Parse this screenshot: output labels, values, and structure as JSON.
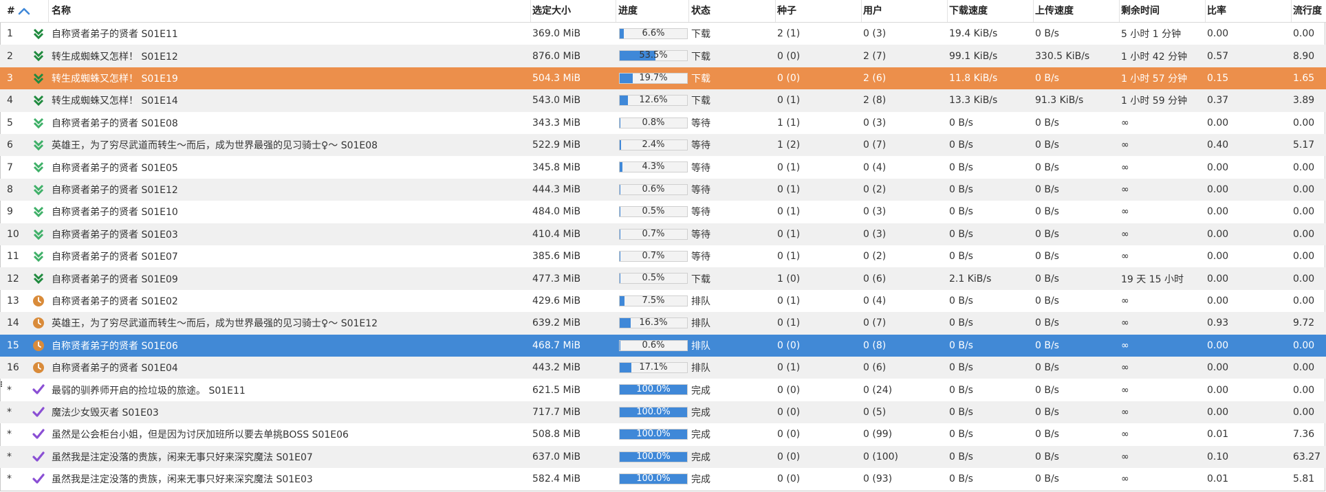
{
  "columns": {
    "num": "#",
    "name": "名称",
    "size": "选定大小",
    "progress": "进度",
    "status": "状态",
    "seeds": "种子",
    "peers": "用户",
    "down": "下载速度",
    "up": "上传速度",
    "eta": "剩余时间",
    "ratio": "比率",
    "pop": "流行度"
  },
  "colors": {
    "accent": "#4189d6",
    "orange_selection": "#ec8f4b",
    "green_download": "#2e9a4f",
    "queued_orange": "#d98b3a",
    "complete_purple": "#8a4fd4"
  },
  "rows": [
    {
      "num": "1",
      "icon": "download-double-chevron-icon",
      "name": "自称贤者弟子的贤者 S01E11",
      "size": "369.0 MiB",
      "pct": 6.6,
      "pct_text": "6.6%",
      "status": "下载",
      "seeds": "2 (1)",
      "peers": "0 (3)",
      "down": "19.4 KiB/s",
      "up": "0 B/s",
      "eta": "5 小时 1 分钟",
      "ratio": "0.00",
      "pop": "0.00"
    },
    {
      "num": "2",
      "icon": "download-double-chevron-icon",
      "name": "转生成蜘蛛又怎样！ S01E12",
      "size": "876.0 MiB",
      "pct": 53.5,
      "pct_text": "53.5%",
      "status": "下载",
      "seeds": "0 (0)",
      "peers": "2 (7)",
      "down": "99.1 KiB/s",
      "up": "330.5 KiB/s",
      "eta": "1 小时 42 分钟",
      "ratio": "0.57",
      "pop": "8.90"
    },
    {
      "num": "3",
      "icon": "download-double-chevron-icon",
      "name": "转生成蜘蛛又怎样！ S01E19",
      "size": "504.3 MiB",
      "pct": 19.7,
      "pct_text": "19.7%",
      "status": "下载",
      "seeds": "0 (0)",
      "peers": "2 (6)",
      "down": "11.8 KiB/s",
      "up": "0 B/s",
      "eta": "1 小时 57 分钟",
      "ratio": "0.15",
      "pop": "1.65",
      "selected": "orange"
    },
    {
      "num": "4",
      "icon": "download-double-chevron-icon",
      "name": "转生成蜘蛛又怎样！ S01E14",
      "size": "543.0 MiB",
      "pct": 12.6,
      "pct_text": "12.6%",
      "status": "下载",
      "seeds": "0 (1)",
      "peers": "2 (8)",
      "down": "13.3 KiB/s",
      "up": "91.3 KiB/s",
      "eta": "1 小时 59 分钟",
      "ratio": "0.37",
      "pop": "3.89"
    },
    {
      "num": "5",
      "icon": "waiting-double-chevron-icon",
      "name": "自称贤者弟子的贤者 S01E08",
      "size": "343.3 MiB",
      "pct": 0.8,
      "pct_text": "0.8%",
      "status": "等待",
      "seeds": "1 (1)",
      "peers": "0 (3)",
      "down": "0 B/s",
      "up": "0 B/s",
      "eta": "∞",
      "ratio": "0.00",
      "pop": "0.00"
    },
    {
      "num": "6",
      "icon": "waiting-double-chevron-icon",
      "name": "英雄王，为了穷尽武道而转生～而后，成为世界最强的见习骑士♀～ S01E08",
      "size": "522.9 MiB",
      "pct": 2.4,
      "pct_text": "2.4%",
      "status": "等待",
      "seeds": "1 (2)",
      "peers": "0 (7)",
      "down": "0 B/s",
      "up": "0 B/s",
      "eta": "∞",
      "ratio": "0.40",
      "pop": "5.17"
    },
    {
      "num": "7",
      "icon": "waiting-double-chevron-icon",
      "name": "自称贤者弟子的贤者 S01E05",
      "size": "345.8 MiB",
      "pct": 4.3,
      "pct_text": "4.3%",
      "status": "等待",
      "seeds": "0 (1)",
      "peers": "0 (4)",
      "down": "0 B/s",
      "up": "0 B/s",
      "eta": "∞",
      "ratio": "0.00",
      "pop": "0.00"
    },
    {
      "num": "8",
      "icon": "waiting-double-chevron-icon",
      "name": "自称贤者弟子的贤者 S01E12",
      "size": "444.3 MiB",
      "pct": 0.6,
      "pct_text": "0.6%",
      "status": "等待",
      "seeds": "0 (1)",
      "peers": "0 (2)",
      "down": "0 B/s",
      "up": "0 B/s",
      "eta": "∞",
      "ratio": "0.00",
      "pop": "0.00"
    },
    {
      "num": "9",
      "icon": "waiting-double-chevron-icon",
      "name": "自称贤者弟子的贤者 S01E10",
      "size": "484.0 MiB",
      "pct": 0.5,
      "pct_text": "0.5%",
      "status": "等待",
      "seeds": "0 (1)",
      "peers": "0 (3)",
      "down": "0 B/s",
      "up": "0 B/s",
      "eta": "∞",
      "ratio": "0.00",
      "pop": "0.00"
    },
    {
      "num": "10",
      "icon": "waiting-double-chevron-icon",
      "name": "自称贤者弟子的贤者 S01E03",
      "size": "410.4 MiB",
      "pct": 0.7,
      "pct_text": "0.7%",
      "status": "等待",
      "seeds": "0 (1)",
      "peers": "0 (3)",
      "down": "0 B/s",
      "up": "0 B/s",
      "eta": "∞",
      "ratio": "0.00",
      "pop": "0.00"
    },
    {
      "num": "11",
      "icon": "waiting-double-chevron-icon",
      "name": "自称贤者弟子的贤者 S01E07",
      "size": "385.6 MiB",
      "pct": 0.7,
      "pct_text": "0.7%",
      "status": "等待",
      "seeds": "0 (1)",
      "peers": "0 (2)",
      "down": "0 B/s",
      "up": "0 B/s",
      "eta": "∞",
      "ratio": "0.00",
      "pop": "0.00"
    },
    {
      "num": "12",
      "icon": "download-double-chevron-icon",
      "name": "自称贤者弟子的贤者 S01E09",
      "size": "477.3 MiB",
      "pct": 0.5,
      "pct_text": "0.5%",
      "status": "下载",
      "seeds": "1 (0)",
      "peers": "0 (6)",
      "down": "2.1 KiB/s",
      "up": "0 B/s",
      "eta": "19 天 15 小时",
      "ratio": "0.00",
      "pop": "0.00"
    },
    {
      "num": "13",
      "icon": "queued-clock-icon",
      "name": "自称贤者弟子的贤者 S01E02",
      "size": "429.6 MiB",
      "pct": 7.5,
      "pct_text": "7.5%",
      "status": "排队",
      "seeds": "0 (1)",
      "peers": "0 (4)",
      "down": "0 B/s",
      "up": "0 B/s",
      "eta": "∞",
      "ratio": "0.00",
      "pop": "0.00"
    },
    {
      "num": "14",
      "icon": "queued-clock-icon",
      "name": "英雄王，为了穷尽武道而转生～而后，成为世界最强的见习骑士♀～ S01E12",
      "size": "639.2 MiB",
      "pct": 16.3,
      "pct_text": "16.3%",
      "status": "排队",
      "seeds": "0 (1)",
      "peers": "0 (7)",
      "down": "0 B/s",
      "up": "0 B/s",
      "eta": "∞",
      "ratio": "0.93",
      "pop": "9.72"
    },
    {
      "num": "15",
      "icon": "queued-clock-icon",
      "name": "自称贤者弟子的贤者 S01E06",
      "size": "468.7 MiB",
      "pct": 0.6,
      "pct_text": "0.6%",
      "status": "排队",
      "seeds": "0 (0)",
      "peers": "0 (8)",
      "down": "0 B/s",
      "up": "0 B/s",
      "eta": "∞",
      "ratio": "0.00",
      "pop": "0.00",
      "selected": "blue"
    },
    {
      "num": "16",
      "icon": "queued-clock-icon",
      "name": "自称贤者弟子的贤者 S01E04",
      "size": "443.2 MiB",
      "pct": 17.1,
      "pct_text": "17.1%",
      "status": "排队",
      "seeds": "0 (1)",
      "peers": "0 (6)",
      "down": "0 B/s",
      "up": "0 B/s",
      "eta": "∞",
      "ratio": "0.00",
      "pop": "0.00"
    },
    {
      "num": "*",
      "icon": "complete-check-icon",
      "name": "最弱的驯养师开启的捡垃圾的旅途。 S01E11",
      "size": "621.5 MiB",
      "pct": 100,
      "pct_text": "100.0%",
      "status": "完成",
      "seeds": "0 (0)",
      "peers": "0 (24)",
      "down": "0 B/s",
      "up": "0 B/s",
      "eta": "∞",
      "ratio": "0.00",
      "pop": "0.00"
    },
    {
      "num": "*",
      "icon": "complete-check-icon",
      "name": "魔法少女毁灭者 S01E03",
      "size": "717.7 MiB",
      "pct": 100,
      "pct_text": "100.0%",
      "status": "完成",
      "seeds": "0 (0)",
      "peers": "0 (5)",
      "down": "0 B/s",
      "up": "0 B/s",
      "eta": "∞",
      "ratio": "0.00",
      "pop": "0.00"
    },
    {
      "num": "*",
      "icon": "complete-check-icon",
      "name": "虽然是公会柜台小姐，但是因为讨厌加班所以要去单挑BOSS S01E06",
      "size": "508.8 MiB",
      "pct": 100,
      "pct_text": "100.0%",
      "status": "完成",
      "seeds": "0 (0)",
      "peers": "0 (99)",
      "down": "0 B/s",
      "up": "0 B/s",
      "eta": "∞",
      "ratio": "0.01",
      "pop": "7.36"
    },
    {
      "num": "*",
      "icon": "complete-check-icon",
      "name": "虽然我是注定没落的贵族，闲来无事只好来深究魔法 S01E07",
      "size": "637.0 MiB",
      "pct": 100,
      "pct_text": "100.0%",
      "status": "完成",
      "seeds": "0 (0)",
      "peers": "0 (100)",
      "down": "0 B/s",
      "up": "0 B/s",
      "eta": "∞",
      "ratio": "0.10",
      "pop": "63.27"
    },
    {
      "num": "*",
      "icon": "complete-check-icon",
      "name": "虽然我是注定没落的贵族，闲来无事只好来深究魔法 S01E03",
      "size": "582.4 MiB",
      "pct": 100,
      "pct_text": "100.0%",
      "status": "完成",
      "seeds": "0 (0)",
      "peers": "0 (93)",
      "down": "0 B/s",
      "up": "0 B/s",
      "eta": "∞",
      "ratio": "0.01",
      "pop": "5.81"
    }
  ]
}
